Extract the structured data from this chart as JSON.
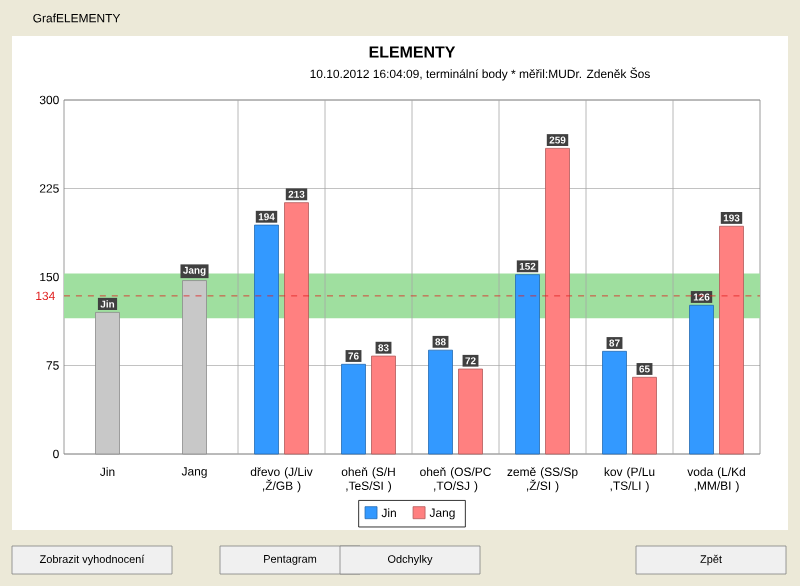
{
  "chart_data": {
    "type": "bar",
    "title": "ELEMENTY",
    "subtitle": "10.10.2012 16:04:09, terminální body * měřil:MUDr. Zdeněk Šos",
    "categories": [
      "Jin",
      "Jang",
      "dřevo (J/Liv ,Ž/GB )",
      "oheň (S/H ,TeS/SI )",
      "oheň (OS/PC ,TO/SJ )",
      "země (SS/Sp ,Ž/SI )",
      "kov (P/Lu ,TS/LI )",
      "voda (L/Kd ,MM/BI )"
    ],
    "series": [
      {
        "color": "#c8c8c8",
        "values": [
          120,
          147,
          null,
          null,
          null,
          null,
          null,
          null
        ],
        "value_labels": [
          "Jin",
          "Jang",
          null,
          null,
          null,
          null,
          null,
          null
        ]
      },
      {
        "name": "Jin",
        "color": "#3399ff",
        "values": [
          null,
          null,
          194,
          76,
          88,
          152,
          87,
          126
        ],
        "value_labels": [
          null,
          null,
          "194",
          "76",
          "88",
          "152",
          "87",
          "126"
        ]
      },
      {
        "name": "Jang",
        "color": "#ff8080",
        "values": [
          null,
          null,
          213,
          83,
          72,
          259,
          65,
          193
        ],
        "value_labels": [
          null,
          null,
          "213",
          "83",
          "72",
          "259",
          "65",
          "193"
        ]
      }
    ],
    "ylim": [
      0,
      300
    ],
    "yticks": [
      0,
      75,
      150,
      225,
      300
    ],
    "grid": true,
    "legend": "bottom",
    "ref_lines": [
      {
        "axis": "y",
        "value": 134,
        "label": "134",
        "color": "#e02020",
        "line_style": "dashed"
      }
    ],
    "bands": [
      {
        "axis": "y",
        "from": 115,
        "to": 153,
        "color": "#9fdf9f"
      }
    ],
    "annotations": [
      "GrafELEMENTY",
      "Zobrazit vyhodnocení",
      "Pentagram",
      "Odchylky",
      "Zpět"
    ]
  }
}
